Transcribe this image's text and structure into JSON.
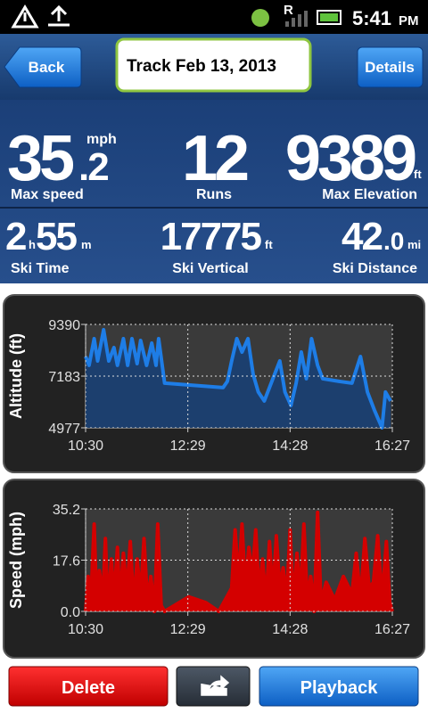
{
  "status_bar": {
    "roaming": "R",
    "time": "5:41",
    "ampm": "PM"
  },
  "header": {
    "back": "Back",
    "title": "Track Feb 13, 2013",
    "details": "Details"
  },
  "stats": {
    "max_speed": {
      "whole": "35",
      "fraction": ".2",
      "unit": "mph",
      "label": "Max speed"
    },
    "runs": {
      "value": "12",
      "label": "Runs"
    },
    "max_elevation": {
      "value": "9389",
      "unit": "ft",
      "label": "Max Elevation"
    },
    "ski_time": {
      "hours": "2",
      "h": "h",
      "minutes": "55",
      "m": "m",
      "label": "Ski Time"
    },
    "ski_vertical": {
      "value": "17775",
      "unit": "ft",
      "label": "Ski Vertical"
    },
    "ski_distance": {
      "whole": "42",
      "fraction": ".0",
      "unit": "mi",
      "label": "Ski Distance"
    }
  },
  "chart_data": [
    {
      "type": "area-line",
      "y_label": "Altitude (ft)",
      "color": "#1e7de6",
      "fill_color": "#1c3f6e",
      "grid": true,
      "x": [
        "10:30",
        "10:34",
        "10:40",
        "10:44",
        "10:51",
        "10:57",
        "11:03",
        "11:07",
        "11:14",
        "11:19",
        "11:24",
        "11:30",
        "11:34",
        "11:41",
        "11:47",
        "11:52",
        "11:55",
        "12:02",
        "13:10",
        "13:15",
        "13:20",
        "13:26",
        "13:32",
        "13:39",
        "13:45",
        "13:51",
        "13:58",
        "14:04",
        "14:10",
        "14:16",
        "14:22",
        "14:29",
        "14:35",
        "14:41",
        "14:47",
        "14:53",
        "15:00",
        "15:06",
        "15:25",
        "15:40",
        "15:50",
        "15:58",
        "16:06",
        "16:15",
        "16:19",
        "16:25"
      ],
      "values": [
        8022,
        7642,
        8782,
        7832,
        9162,
        7832,
        8402,
        7642,
        8782,
        7642,
        8782,
        7718,
        8706,
        7642,
        8592,
        7642,
        8782,
        6882,
        6692,
        6958,
        7832,
        8782,
        8212,
        8782,
        7262,
        6502,
        6122,
        6692,
        7262,
        7832,
        6502,
        5932,
        6882,
        8212,
        7072,
        8782,
        7642,
        7072,
        6958,
        6882,
        8022,
        6502,
        5742,
        4982,
        6502,
        6122
      ],
      "xlim": [
        "10:30",
        "16:27"
      ],
      "xticks": [
        "10:30",
        "12:29",
        "14:28",
        "16:27"
      ],
      "ylim": [
        4977,
        9390
      ],
      "yticks": [
        4977,
        7183,
        9390
      ]
    },
    {
      "type": "area-line",
      "y_label": "Speed (mph)",
      "color": "#d40000",
      "fill_color": "#d40000",
      "grid": true,
      "x": [
        "10:30",
        "10:33",
        "10:36",
        "10:40",
        "10:43",
        "10:46",
        "10:50",
        "10:53",
        "10:56",
        "11:00",
        "11:03",
        "11:07",
        "11:10",
        "11:14",
        "11:18",
        "11:22",
        "11:26",
        "11:30",
        "11:34",
        "11:38",
        "11:42",
        "11:46",
        "11:50",
        "11:54",
        "11:58",
        "12:02",
        "12:30",
        "12:50",
        "13:05",
        "13:20",
        "13:24",
        "13:28",
        "13:32",
        "13:36",
        "13:40",
        "13:44",
        "13:48",
        "13:52",
        "13:56",
        "14:00",
        "14:04",
        "14:08",
        "14:12",
        "14:16",
        "14:20",
        "14:24",
        "14:28",
        "14:32",
        "14:36",
        "14:40",
        "14:44",
        "14:48",
        "14:52",
        "14:56",
        "15:00",
        "15:04",
        "15:10",
        "15:20",
        "15:30",
        "15:40",
        "15:45",
        "15:50",
        "15:55",
        "16:00",
        "16:05",
        "16:10",
        "16:15",
        "16:20",
        "16:24",
        "16:27"
      ],
      "values": [
        0,
        12,
        3,
        30,
        2,
        14,
        5,
        25,
        1,
        18,
        4,
        22,
        3,
        20,
        6,
        24,
        2,
        18,
        5,
        25,
        3,
        12,
        0,
        30,
        2,
        0,
        5,
        3,
        0,
        8,
        28,
        10,
        30,
        8,
        22,
        12,
        28,
        6,
        18,
        3,
        24,
        5,
        26,
        8,
        15,
        4,
        28,
        2,
        20,
        5,
        30,
        4,
        12,
        0,
        34,
        3,
        10,
        4,
        12,
        6,
        20,
        4,
        25,
        8,
        10,
        26,
        4,
        24,
        3,
        0
      ],
      "xlim": [
        "10:30",
        "16:27"
      ],
      "xticks": [
        "10:30",
        "12:29",
        "14:28",
        "16:27"
      ],
      "ylim": [
        0,
        35.2
      ],
      "yticks": [
        {
          "value": 0,
          "label": "0.0"
        },
        17.6,
        35.2
      ]
    }
  ],
  "buttons": {
    "delete": "Delete",
    "playback": "Playback"
  }
}
